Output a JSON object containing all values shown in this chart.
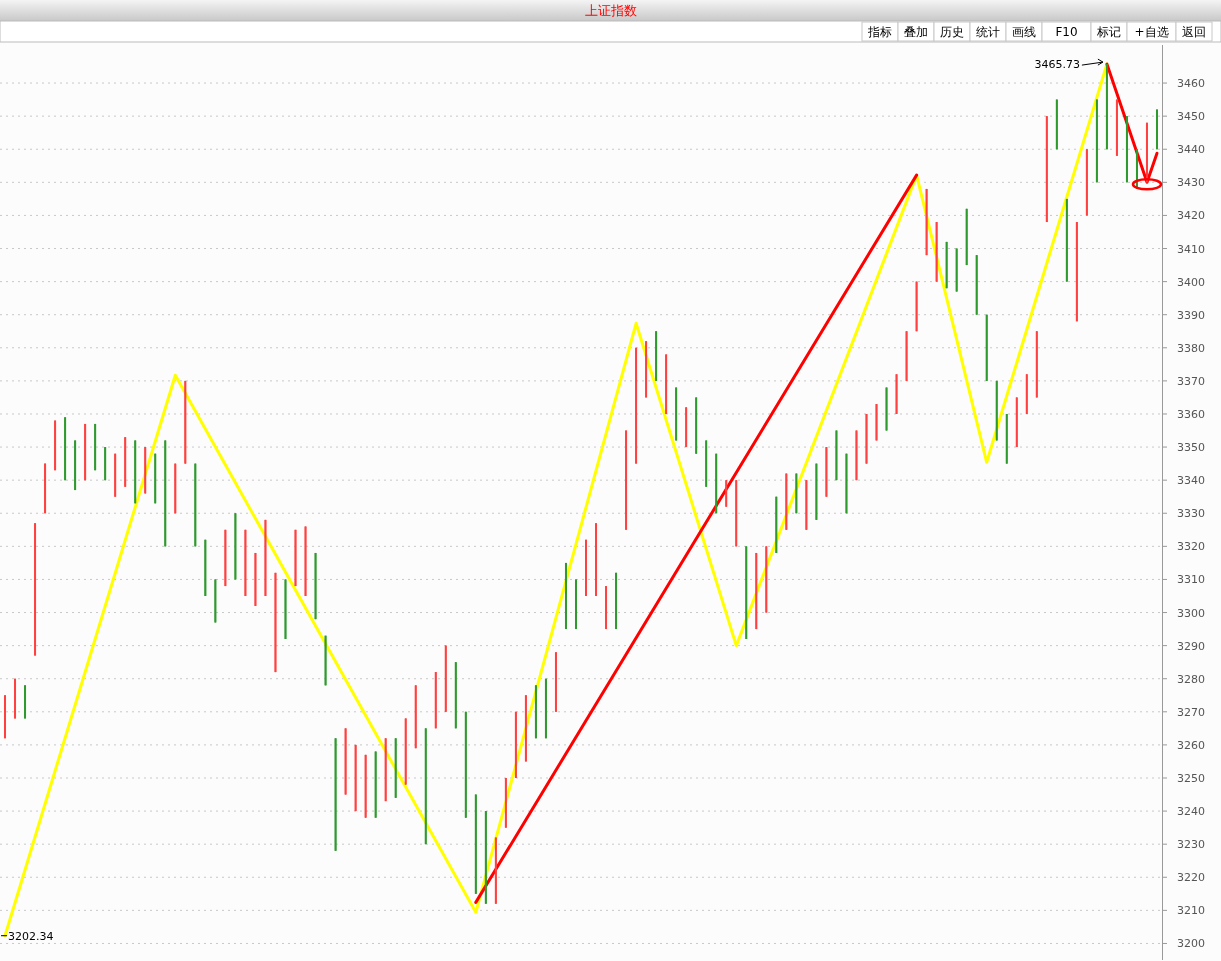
{
  "chart_data": {
    "type": "candlestick",
    "title": "上证指数",
    "categories": [
      null,
      null,
      null,
      null,
      null,
      null,
      null,
      null,
      null,
      null,
      null,
      null,
      null,
      null,
      null,
      null,
      null,
      null,
      null,
      null,
      null,
      null,
      null,
      null,
      null,
      null,
      null,
      null,
      null,
      null,
      null,
      null,
      null,
      null,
      null,
      null,
      null,
      null,
      null,
      null,
      null,
      null,
      null,
      null,
      null,
      null,
      null,
      null,
      null,
      null,
      null,
      null,
      null,
      null,
      null,
      null,
      null,
      null,
      null,
      null,
      null,
      null,
      null,
      null,
      null,
      null,
      null,
      null,
      null,
      null,
      null,
      null,
      null,
      null,
      null,
      null,
      null,
      null,
      null,
      null,
      null,
      null,
      null,
      null,
      null,
      null,
      null,
      null,
      null,
      null,
      null,
      null,
      null,
      null,
      null,
      null,
      null,
      null,
      null,
      null,
      null,
      null,
      null,
      null,
      null,
      null,
      null,
      null,
      null,
      null,
      null,
      null,
      null,
      null,
      null,
      null
    ],
    "ohlc": [
      [
        3262,
        3275,
        3262,
        3275
      ],
      [
        3268,
        3280,
        3268,
        3280
      ],
      [
        3278,
        3278,
        3268,
        3268
      ],
      [
        3287,
        3327,
        3287,
        3327
      ],
      [
        3330,
        3345,
        3330,
        3345
      ],
      [
        3343,
        3358,
        3343,
        3358
      ],
      [
        3359,
        3359,
        3340,
        3340
      ],
      [
        3352,
        3352,
        3337,
        3337
      ],
      [
        3340,
        3357,
        3340,
        3357
      ],
      [
        3357,
        3357,
        3343,
        3343
      ],
      [
        3350,
        3350,
        3340,
        3340
      ],
      [
        3335,
        3348,
        3335,
        3348
      ],
      [
        3338,
        3353,
        3338,
        3353
      ],
      [
        3352,
        3352,
        3333,
        3333
      ],
      [
        3336,
        3350,
        3336,
        3350
      ],
      [
        3348,
        3348,
        3333,
        3333
      ],
      [
        3352,
        3352,
        3320,
        3320
      ],
      [
        3330,
        3345,
        3330,
        3345
      ],
      [
        3345,
        3370,
        3345,
        3370
      ],
      [
        3345,
        3345,
        3320,
        3320
      ],
      [
        3322,
        3322,
        3305,
        3305
      ],
      [
        3310,
        3310,
        3297,
        3297
      ],
      [
        3308,
        3325,
        3308,
        3325
      ],
      [
        3330,
        3330,
        3310,
        3310
      ],
      [
        3305,
        3325,
        3305,
        3325
      ],
      [
        3302,
        3318,
        3302,
        3318
      ],
      [
        3305,
        3328,
        3305,
        3328
      ],
      [
        3282,
        3312,
        3282,
        3312
      ],
      [
        3310,
        3310,
        3292,
        3292
      ],
      [
        3308,
        3325,
        3308,
        3325
      ],
      [
        3305,
        3326,
        3305,
        3326
      ],
      [
        3318,
        3318,
        3298,
        3298
      ],
      [
        3293,
        3293,
        3278,
        3278
      ],
      [
        3262,
        3262,
        3228,
        3228
      ],
      [
        3245,
        3265,
        3245,
        3265
      ],
      [
        3240,
        3260,
        3240,
        3260
      ],
      [
        3238,
        3257,
        3238,
        3257
      ],
      [
        3258,
        3258,
        3238,
        3238
      ],
      [
        3243,
        3262,
        3243,
        3262
      ],
      [
        3262,
        3262,
        3244,
        3244
      ],
      [
        3248,
        3268,
        3248,
        3268
      ],
      [
        3259,
        3278,
        3259,
        3278
      ],
      [
        3265,
        3265,
        3230,
        3230
      ],
      [
        3265,
        3282,
        3265,
        3282
      ],
      [
        3270,
        3290,
        3270,
        3290
      ],
      [
        3285,
        3285,
        3265,
        3265
      ],
      [
        3270,
        3270,
        3238,
        3238
      ],
      [
        3245,
        3245,
        3215,
        3215
      ],
      [
        3240,
        3240,
        3212,
        3212
      ],
      [
        3212,
        3232,
        3212,
        3232
      ],
      [
        3235,
        3250,
        3235,
        3250
      ],
      [
        3250,
        3270,
        3250,
        3270
      ],
      [
        3255,
        3275,
        3255,
        3275
      ],
      [
        3278,
        3278,
        3262,
        3262
      ],
      [
        3280,
        3280,
        3262,
        3262
      ],
      [
        3270,
        3288,
        3270,
        3288
      ],
      [
        3315,
        3315,
        3295,
        3295
      ],
      [
        3310,
        3310,
        3295,
        3295
      ],
      [
        3305,
        3322,
        3305,
        3322
      ],
      [
        3305,
        3327,
        3305,
        3327
      ],
      [
        3295,
        3308,
        3295,
        3308
      ],
      [
        3312,
        3312,
        3295,
        3295
      ],
      [
        3325,
        3355,
        3325,
        3355
      ],
      [
        3345,
        3380,
        3345,
        3380
      ],
      [
        3365,
        3382,
        3365,
        3382
      ],
      [
        3385,
        3385,
        3370,
        3370
      ],
      [
        3360,
        3378,
        3360,
        3378
      ],
      [
        3368,
        3368,
        3352,
        3352
      ],
      [
        3350,
        3362,
        3350,
        3362
      ],
      [
        3365,
        3365,
        3348,
        3348
      ],
      [
        3352,
        3352,
        3338,
        3338
      ],
      [
        3348,
        3348,
        3330,
        3330
      ],
      [
        3332,
        3340,
        3332,
        3340
      ],
      [
        3320,
        3340,
        3320,
        3340
      ],
      [
        3320,
        3320,
        3292,
        3292
      ],
      [
        3295,
        3318,
        3295,
        3318
      ],
      [
        3300,
        3320,
        3300,
        3320
      ],
      [
        3335,
        3335,
        3318,
        3318
      ],
      [
        3325,
        3342,
        3325,
        3342
      ],
      [
        3342,
        3342,
        3330,
        3330
      ],
      [
        3325,
        3340,
        3325,
        3340
      ],
      [
        3345,
        3345,
        3328,
        3328
      ],
      [
        3335,
        3350,
        3335,
        3350
      ],
      [
        3355,
        3355,
        3340,
        3340
      ],
      [
        3348,
        3348,
        3330,
        3330
      ],
      [
        3340,
        3355,
        3340,
        3355
      ],
      [
        3345,
        3360,
        3345,
        3360
      ],
      [
        3352,
        3363,
        3352,
        3363
      ],
      [
        3368,
        3368,
        3355,
        3355
      ],
      [
        3360,
        3372,
        3360,
        3372
      ],
      [
        3370,
        3385,
        3370,
        3385
      ],
      [
        3385,
        3400,
        3385,
        3400
      ],
      [
        3408,
        3428,
        3408,
        3428
      ],
      [
        3400,
        3418,
        3400,
        3418
      ],
      [
        3412,
        3412,
        3398,
        3398
      ],
      [
        3410,
        3410,
        3397,
        3397
      ],
      [
        3422,
        3422,
        3405,
        3405
      ],
      [
        3408,
        3408,
        3390,
        3390
      ],
      [
        3390,
        3390,
        3370,
        3370
      ],
      [
        3370,
        3370,
        3352,
        3352
      ],
      [
        3360,
        3360,
        3345,
        3345
      ],
      [
        3350,
        3365,
        3350,
        3365
      ],
      [
        3360,
        3372,
        3360,
        3372
      ],
      [
        3365,
        3385,
        3365,
        3385
      ],
      [
        3418,
        3450,
        3418,
        3450
      ],
      [
        3455,
        3455,
        3440,
        3440
      ],
      [
        3425,
        3425,
        3400,
        3400
      ],
      [
        3388,
        3418,
        3388,
        3418
      ],
      [
        3420,
        3440,
        3420,
        3440
      ],
      [
        3455,
        3455,
        3430,
        3430
      ],
      [
        3465.73,
        3465.73,
        3440,
        3440
      ],
      [
        3438,
        3455,
        3438,
        3455
      ],
      [
        3450,
        3450,
        3430,
        3430
      ],
      [
        3440,
        3440,
        3428,
        3428
      ],
      [
        3430,
        3448,
        3430,
        3448
      ],
      [
        3452,
        3452,
        3440,
        3440
      ]
    ],
    "colors": [
      "#ff4040",
      "#ff4040",
      "#2e9a2e",
      "#ff4040",
      "#ff4040",
      "#ff4040",
      "#2e9a2e",
      "#2e9a2e",
      "#ff4040",
      "#2e9a2e",
      "#2e9a2e",
      "#ff4040",
      "#ff4040",
      "#2e9a2e",
      "#ff4040",
      "#2e9a2e",
      "#2e9a2e",
      "#ff4040",
      "#ff4040",
      "#2e9a2e",
      "#2e9a2e",
      "#2e9a2e",
      "#ff4040",
      "#2e9a2e",
      "#ff4040",
      "#ff4040",
      "#ff4040",
      "#ff4040",
      "#2e9a2e",
      "#ff4040",
      "#ff4040",
      "#2e9a2e",
      "#2e9a2e",
      "#2e9a2e",
      "#ff4040",
      "#ff4040",
      "#ff4040",
      "#2e9a2e",
      "#ff4040",
      "#2e9a2e",
      "#ff4040",
      "#ff4040",
      "#2e9a2e",
      "#ff4040",
      "#ff4040",
      "#2e9a2e",
      "#2e9a2e",
      "#2e9a2e",
      "#2e9a2e",
      "#ff4040",
      "#ff4040",
      "#ff4040",
      "#ff4040",
      "#2e9a2e",
      "#2e9a2e",
      "#ff4040",
      "#2e9a2e",
      "#2e9a2e",
      "#ff4040",
      "#ff4040",
      "#ff4040",
      "#2e9a2e",
      "#ff4040",
      "#ff4040",
      "#ff4040",
      "#2e9a2e",
      "#ff4040",
      "#2e9a2e",
      "#ff4040",
      "#2e9a2e",
      "#2e9a2e",
      "#2e9a2e",
      "#ff4040",
      "#ff4040",
      "#2e9a2e",
      "#ff4040",
      "#ff4040",
      "#2e9a2e",
      "#ff4040",
      "#2e9a2e",
      "#ff4040",
      "#2e9a2e",
      "#ff4040",
      "#2e9a2e",
      "#2e9a2e",
      "#ff4040",
      "#ff4040",
      "#ff4040",
      "#2e9a2e",
      "#ff4040",
      "#ff4040",
      "#ff4040",
      "#ff4040",
      "#ff4040",
      "#2e9a2e",
      "#2e9a2e",
      "#2e9a2e",
      "#2e9a2e",
      "#2e9a2e",
      "#2e9a2e",
      "#2e9a2e",
      "#ff4040",
      "#ff4040",
      "#ff4040",
      "#ff4040",
      "#2e9a2e",
      "#2e9a2e",
      "#ff4040",
      "#ff4040",
      "#2e9a2e",
      "#2e9a2e",
      "#ff4040",
      "#2e9a2e",
      "#2e9a2e",
      "#ff4040",
      "#2e9a2e"
    ],
    "series": [
      {
        "type": "line",
        "color": "#ffff00",
        "values": [
          3202.34,
          null,
          null,
          null,
          null,
          null,
          null,
          null,
          null,
          null,
          null,
          null,
          null,
          null,
          null,
          null,
          null,
          3371.7,
          null,
          null,
          null,
          null,
          null,
          null,
          null,
          null,
          null,
          null,
          null,
          null,
          null,
          null,
          null,
          null,
          null,
          null,
          null,
          null,
          null,
          null,
          null,
          null,
          null,
          null,
          null,
          null,
          null,
          3209.4,
          null,
          null,
          null,
          null,
          null,
          null,
          null,
          null,
          null,
          null,
          null,
          null,
          null,
          null,
          null,
          3387.4,
          null,
          null,
          null,
          null,
          null,
          null,
          null,
          null,
          null,
          3290,
          null,
          null,
          null,
          null,
          null,
          null,
          null,
          null,
          null,
          null,
          null,
          null,
          null,
          null,
          null,
          null,
          null,
          3432.2,
          null,
          null,
          null,
          null,
          null,
          null,
          3345.4,
          null,
          null,
          null,
          null,
          null,
          null,
          null,
          null,
          null,
          null,
          null,
          3465.73,
          null,
          null,
          null,
          null,
          null
        ]
      },
      {
        "type": "line",
        "color": "#ff0000",
        "values": [
          null,
          null,
          null,
          null,
          null,
          null,
          null,
          null,
          null,
          null,
          null,
          null,
          null,
          null,
          null,
          null,
          null,
          null,
          null,
          null,
          null,
          null,
          null,
          null,
          null,
          null,
          null,
          null,
          null,
          null,
          null,
          null,
          null,
          null,
          null,
          null,
          null,
          null,
          null,
          null,
          null,
          null,
          null,
          null,
          null,
          null,
          null,
          3212.4,
          null,
          null,
          null,
          null,
          null,
          null,
          null,
          null,
          null,
          null,
          null,
          null,
          null,
          null,
          null,
          null,
          null,
          null,
          null,
          null,
          null,
          null,
          null,
          null,
          null,
          null,
          null,
          null,
          null,
          null,
          null,
          null,
          null,
          null,
          null,
          null,
          null,
          null,
          null,
          null,
          null,
          null,
          null,
          3432.2,
          null,
          null,
          null,
          null,
          null,
          null,
          null,
          null,
          null,
          null,
          null,
          null,
          null,
          null,
          null,
          null,
          null,
          null,
          null,
          null,
          null,
          null,
          null,
          null
        ]
      },
      {
        "type": "line",
        "color": "#ff0000",
        "values": [
          null,
          null,
          null,
          null,
          null,
          null,
          null,
          null,
          null,
          null,
          null,
          null,
          null,
          null,
          null,
          null,
          null,
          null,
          null,
          null,
          null,
          null,
          null,
          null,
          null,
          null,
          null,
          null,
          null,
          null,
          null,
          null,
          null,
          null,
          null,
          null,
          null,
          null,
          null,
          null,
          null,
          null,
          null,
          null,
          null,
          null,
          null,
          null,
          null,
          null,
          null,
          null,
          null,
          null,
          null,
          null,
          null,
          null,
          null,
          null,
          null,
          null,
          null,
          null,
          null,
          null,
          null,
          null,
          null,
          null,
          null,
          null,
          null,
          null,
          null,
          null,
          null,
          null,
          null,
          null,
          null,
          null,
          null,
          null,
          null,
          null,
          null,
          null,
          null,
          null,
          null,
          null,
          null,
          null,
          null,
          null,
          null,
          null,
          null,
          null,
          null,
          null,
          null,
          null,
          null,
          null,
          null,
          null,
          null,
          null,
          3465.73,
          null,
          null,
          null,
          3430,
          3438.8
        ]
      }
    ],
    "ylim": [
      3195,
      3471.5
    ],
    "yticks": [
      3200,
      3210,
      3220,
      3230,
      3240,
      3250,
      3260,
      3270,
      3280,
      3290,
      3300,
      3310,
      3320,
      3330,
      3340,
      3350,
      3360,
      3370,
      3380,
      3390,
      3400,
      3410,
      3420,
      3430,
      3440,
      3450,
      3460
    ],
    "grid": "y",
    "tick_labels": "y",
    "marker": "none",
    "line_style": "solid",
    "annotations": [
      "指标",
      "叠加",
      "历史",
      "统计",
      "画线",
      "F10",
      "标记",
      "+自选",
      "返回",
      "3465.73",
      "3202.34"
    ]
  }
}
